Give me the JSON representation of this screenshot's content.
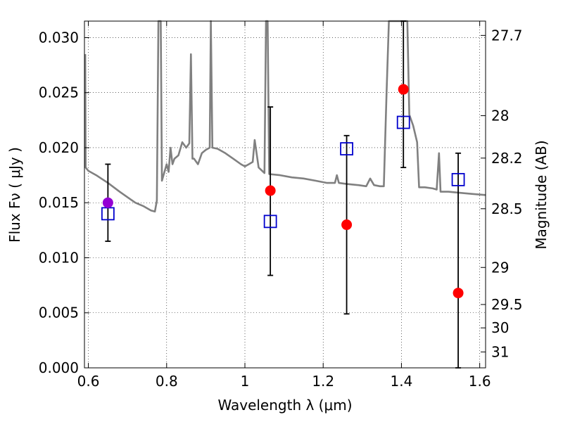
{
  "chart_data": {
    "type": "scatter",
    "xlabel": "Wavelength  λ (μm)",
    "ylabel_left": "Flux  Fν  ( μJy )",
    "ylabel_right": "Magnitude (AB)",
    "xlim": [
      0.59,
      1.615
    ],
    "ylim": [
      0.0,
      0.0315
    ],
    "grid": true,
    "x_ticks": [
      0.6,
      0.8,
      1.0,
      1.2,
      1.4,
      1.6
    ],
    "x_tick_labels": [
      "0.6",
      "0.8",
      "1",
      "1.2",
      "1.4",
      "1.6"
    ],
    "y_ticks": [
      0.0,
      0.005,
      0.01,
      0.015,
      0.02,
      0.025,
      0.03
    ],
    "y_tick_labels": [
      "0.000",
      "0.005",
      "0.010",
      "0.015",
      "0.020",
      "0.025",
      "0.030"
    ],
    "mag_ticks": [
      {
        "label": "27.7",
        "mag": 27.7
      },
      {
        "label": "28",
        "mag": 28.0
      },
      {
        "label": "28.2",
        "mag": 28.2
      },
      {
        "label": "28.5",
        "mag": 28.5
      },
      {
        "label": "29",
        "mag": 29.0
      },
      {
        "label": "29.5",
        "mag": 29.5
      },
      {
        "label": "30",
        "mag": 30.0
      },
      {
        "label": "31",
        "mag": 31.0
      }
    ],
    "model_spectrum": {
      "color": "#808080",
      "points": [
        [
          0.592,
          0.0285
        ],
        [
          0.593,
          0.0182
        ],
        [
          0.6,
          0.0179
        ],
        [
          0.62,
          0.0175
        ],
        [
          0.65,
          0.0168
        ],
        [
          0.68,
          0.016
        ],
        [
          0.7,
          0.0155
        ],
        [
          0.72,
          0.015
        ],
        [
          0.74,
          0.0147
        ],
        [
          0.76,
          0.0143
        ],
        [
          0.77,
          0.0142
        ],
        [
          0.775,
          0.0152
        ],
        [
          0.779,
          0.0315
        ],
        [
          0.785,
          0.0315
        ],
        [
          0.788,
          0.017
        ],
        [
          0.8,
          0.0185
        ],
        [
          0.805,
          0.0178
        ],
        [
          0.81,
          0.02
        ],
        [
          0.815,
          0.0185
        ],
        [
          0.82,
          0.019
        ],
        [
          0.83,
          0.0193
        ],
        [
          0.84,
          0.0205
        ],
        [
          0.85,
          0.02
        ],
        [
          0.858,
          0.0204
        ],
        [
          0.862,
          0.0285
        ],
        [
          0.866,
          0.019
        ],
        [
          0.87,
          0.019
        ],
        [
          0.88,
          0.0185
        ],
        [
          0.89,
          0.0195
        ],
        [
          0.9,
          0.0198
        ],
        [
          0.91,
          0.02
        ],
        [
          0.913,
          0.0315
        ],
        [
          0.917,
          0.02
        ],
        [
          0.93,
          0.0199
        ],
        [
          0.95,
          0.0195
        ],
        [
          0.97,
          0.019
        ],
        [
          0.99,
          0.0185
        ],
        [
          1.0,
          0.0183
        ],
        [
          1.01,
          0.0185
        ],
        [
          1.02,
          0.0187
        ],
        [
          1.025,
          0.0207
        ],
        [
          1.035,
          0.0182
        ],
        [
          1.05,
          0.0177
        ],
        [
          1.054,
          0.0315
        ],
        [
          1.058,
          0.0315
        ],
        [
          1.062,
          0.0176
        ],
        [
          1.09,
          0.0175
        ],
        [
          1.12,
          0.0173
        ],
        [
          1.15,
          0.0172
        ],
        [
          1.18,
          0.017
        ],
        [
          1.21,
          0.0168
        ],
        [
          1.23,
          0.0168
        ],
        [
          1.235,
          0.0175
        ],
        [
          1.24,
          0.0168
        ],
        [
          1.26,
          0.0167
        ],
        [
          1.29,
          0.0166
        ],
        [
          1.31,
          0.0165
        ],
        [
          1.32,
          0.0172
        ],
        [
          1.33,
          0.0166
        ],
        [
          1.345,
          0.0165
        ],
        [
          1.355,
          0.0165
        ],
        [
          1.362,
          0.025
        ],
        [
          1.368,
          0.0315
        ],
        [
          1.38,
          0.0315
        ],
        [
          1.39,
          0.0315
        ],
        [
          1.4,
          0.0315
        ],
        [
          1.41,
          0.0315
        ],
        [
          1.415,
          0.0315
        ],
        [
          1.42,
          0.023
        ],
        [
          1.43,
          0.022
        ],
        [
          1.44,
          0.0205
        ],
        [
          1.445,
          0.0164
        ],
        [
          1.46,
          0.0164
        ],
        [
          1.48,
          0.0163
        ],
        [
          1.49,
          0.0162
        ],
        [
          1.496,
          0.0195
        ],
        [
          1.5,
          0.016
        ],
        [
          1.52,
          0.016
        ],
        [
          1.55,
          0.0159
        ],
        [
          1.58,
          0.0158
        ],
        [
          1.615,
          0.0157
        ]
      ]
    },
    "measurements": [
      {
        "x": 0.65,
        "y": 0.015,
        "yerr_low": 0.0115,
        "yerr_high": 0.0185,
        "color": "#9400d3"
      },
      {
        "x": 1.065,
        "y": 0.0161,
        "yerr_low": 0.0084,
        "yerr_high": 0.0237,
        "color": "#ff0000"
      },
      {
        "x": 1.26,
        "y": 0.013,
        "yerr_low": 0.0049,
        "yerr_high": 0.0211,
        "color": "#ff0000"
      },
      {
        "x": 1.405,
        "y": 0.0253,
        "yerr_low": 0.0182,
        "yerr_high": 0.0315,
        "color": "#ff0000"
      },
      {
        "x": 1.545,
        "y": 0.0068,
        "yerr_low": 0.0,
        "yerr_high": 0.0195,
        "color": "#ff0000"
      }
    ],
    "model_points": [
      {
        "x": 0.65,
        "y": 0.014
      },
      {
        "x": 1.065,
        "y": 0.0133
      },
      {
        "x": 1.26,
        "y": 0.0199
      },
      {
        "x": 1.405,
        "y": 0.0223
      },
      {
        "x": 1.545,
        "y": 0.0171
      }
    ],
    "model_point_color": "#0000cd"
  }
}
